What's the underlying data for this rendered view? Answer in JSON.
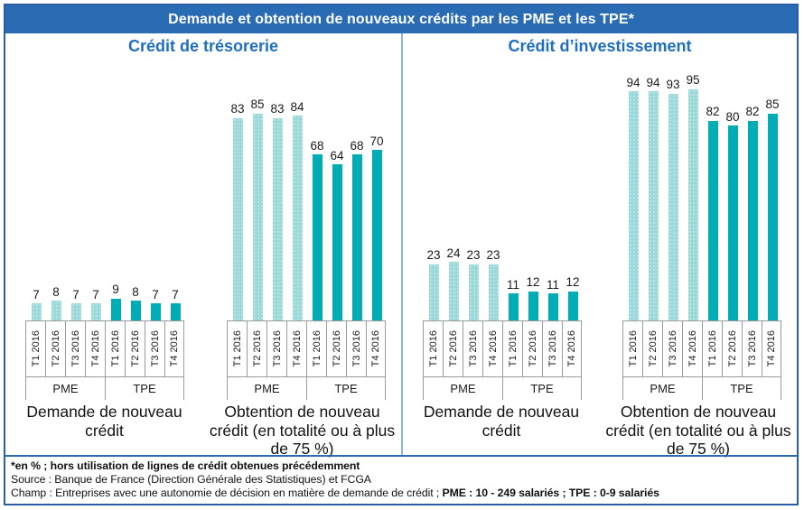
{
  "title": "Demande et obtention de nouveaux crédits par les PME et les TPE*",
  "colors": {
    "title_bar_bg": "#2a6cb4",
    "title_text": "#ffffff",
    "panel_header_text": "#1e6fbf",
    "pme_bar": "#9bd8d9",
    "tpe_bar": "#00adb5",
    "divider": "#8fb4d4",
    "outer_border": "#2a5da8"
  },
  "chart_data": [
    {
      "type": "bar",
      "panel_title": "Crédit de trésorerie",
      "unit": "%",
      "ylim": [
        0,
        100
      ],
      "groups": [
        {
          "caption": "Demande de nouveau crédit",
          "categories": [
            "T1 2016",
            "T2 2016",
            "T3 2016",
            "T4 2016"
          ],
          "series": [
            {
              "name": "PME",
              "values": [
                7,
                8,
                7,
                7
              ]
            },
            {
              "name": "TPE",
              "values": [
                9,
                8,
                7,
                7
              ]
            }
          ]
        },
        {
          "caption": "Obtention de nouveau crédit (en totalité ou à plus de 75 %)",
          "categories": [
            "T1 2016",
            "T2 2016",
            "T3 2016",
            "T4 2016"
          ],
          "series": [
            {
              "name": "PME",
              "values": [
                83,
                85,
                83,
                84
              ]
            },
            {
              "name": "TPE",
              "values": [
                68,
                64,
                68,
                70
              ]
            }
          ]
        }
      ]
    },
    {
      "type": "bar",
      "panel_title": "Crédit d’investissement",
      "unit": "%",
      "ylim": [
        0,
        100
      ],
      "groups": [
        {
          "caption": "Demande de nouveau crédit",
          "categories": [
            "T1 2016",
            "T2 2016",
            "T3 2016",
            "T4 2016"
          ],
          "series": [
            {
              "name": "PME",
              "values": [
                23,
                24,
                23,
                23
              ]
            },
            {
              "name": "TPE",
              "values": [
                11,
                12,
                11,
                12
              ]
            }
          ]
        },
        {
          "caption": "Obtention de nouveau crédit (en totalité ou à plus de 75 %)",
          "categories": [
            "T1 2016",
            "T2 2016",
            "T3 2016",
            "T4 2016"
          ],
          "series": [
            {
              "name": "PME",
              "values": [
                94,
                94,
                93,
                95
              ]
            },
            {
              "name": "TPE",
              "values": [
                82,
                80,
                82,
                85
              ]
            }
          ]
        }
      ]
    }
  ],
  "footer": {
    "line1": "*en % ; hors utilisation de lignes de crédit obtenues précédemment",
    "line2": "Source : Banque de France (Direction Générale des Statistiques) et FCGA",
    "line3_regular": "Champ : Entreprises avec une autonomie de décision en matière de demande de crédit ; ",
    "line3_bold": "PME : 10 - 249 salariés ; TPE : 0-9 salariés"
  }
}
